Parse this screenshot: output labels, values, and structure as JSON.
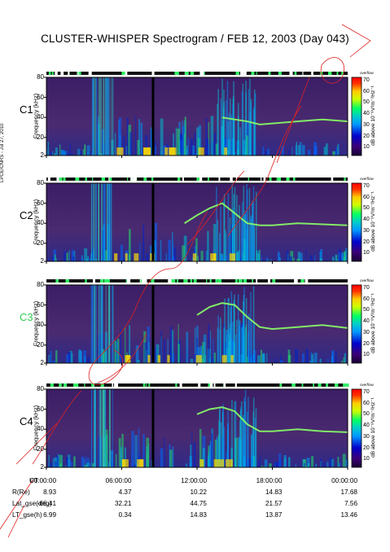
{
  "title": "CLUSTER-WHISPER Spectrogram / FEB 12, 2003 (Day 043)",
  "credit": "LPCE/CNRS - Jul 27, 2010",
  "colorbar": {
    "label": "dB above 10⁻⁸V²m⁻²Hz⁻¹",
    "top_text": "overflow",
    "ticks": [
      "70",
      "60",
      "50",
      "40",
      "30",
      "20",
      "10"
    ]
  },
  "yaxis_label": "Frequency (kHz)",
  "ephemeris": {
    "rows": [
      {
        "label": "UT",
        "values": [
          "00:00:00",
          "06:00:00",
          "12:00:00",
          "18:00:00",
          "00:00:00"
        ]
      },
      {
        "label": "R(Re)",
        "values": [
          "8.93",
          "4.37",
          "10.22",
          "14.83",
          "17.68"
        ]
      },
      {
        "label": "Lat_gse(deg)",
        "values": [
          "-66.41",
          "32.21",
          "44.75",
          "21.57",
          "7.56"
        ]
      },
      {
        "label": "LT_gse(h)",
        "values": [
          "6.99",
          "0.34",
          "14.83",
          "13.87",
          "13.46"
        ]
      }
    ]
  },
  "colors": {
    "background": "#3a1a5a",
    "accent_c3": "#33cc55"
  },
  "chart_data": [
    {
      "type": "heatmap",
      "panel": "C1",
      "spacecraft": "C1",
      "xlabel": "UT",
      "ylabel": "Frequency (kHz)",
      "xlim": [
        "00:00:00",
        "00:00:00"
      ],
      "ylim": [
        2,
        80
      ],
      "yticks": [
        2,
        20,
        40,
        60,
        80
      ],
      "zlim": [
        10,
        70
      ],
      "plasma_line": {
        "x": [
          "14:00",
          "15:00",
          "16:00",
          "17:00",
          "18:00",
          "19:00",
          "20:00",
          "21:00",
          "22:00",
          "23:00",
          "24:00"
        ],
        "y": [
          40,
          38,
          36,
          33,
          34,
          35,
          36,
          37,
          38,
          37,
          36
        ]
      }
    },
    {
      "type": "heatmap",
      "panel": "C2",
      "spacecraft": "C2",
      "xlabel": "UT",
      "ylabel": "Frequency (kHz)",
      "xlim": [
        "00:00:00",
        "00:00:00"
      ],
      "ylim": [
        2,
        80
      ],
      "yticks": [
        2,
        20,
        40,
        60,
        80
      ],
      "zlim": [
        10,
        70
      ],
      "plasma_line": {
        "x": [
          "11:00",
          "12:00",
          "13:00",
          "14:00",
          "15:00",
          "16:00",
          "17:00",
          "18:00",
          "20:00",
          "22:00",
          "24:00"
        ],
        "y": [
          40,
          48,
          55,
          60,
          50,
          40,
          38,
          38,
          40,
          39,
          38
        ]
      }
    },
    {
      "type": "heatmap",
      "panel": "C3",
      "spacecraft": "C3",
      "xlabel": "UT",
      "ylabel": "Frequency (kHz)",
      "xlim": [
        "00:00:00",
        "00:00:00"
      ],
      "ylim": [
        2,
        80
      ],
      "yticks": [
        2,
        20,
        40,
        60,
        80
      ],
      "zlim": [
        10,
        70
      ],
      "plasma_line": {
        "x": [
          "12:00",
          "13:00",
          "14:00",
          "15:00",
          "16:00",
          "17:00",
          "18:00",
          "20:00",
          "22:00",
          "24:00"
        ],
        "y": [
          50,
          58,
          62,
          60,
          48,
          38,
          36,
          38,
          40,
          37
        ]
      }
    },
    {
      "type": "heatmap",
      "panel": "C4",
      "spacecraft": "C4",
      "xlabel": "UT",
      "ylabel": "Frequency (kHz)",
      "xlim": [
        "00:00:00",
        "00:00:00"
      ],
      "ylim": [
        2,
        80
      ],
      "yticks": [
        2,
        20,
        40,
        60,
        80
      ],
      "zlim": [
        10,
        70
      ],
      "plasma_line": {
        "x": [
          "12:00",
          "13:00",
          "14:00",
          "15:00",
          "16:00",
          "17:00",
          "18:00",
          "20:00",
          "22:00",
          "24:00"
        ],
        "y": [
          55,
          60,
          62,
          58,
          45,
          38,
          38,
          40,
          38,
          37
        ]
      }
    }
  ]
}
